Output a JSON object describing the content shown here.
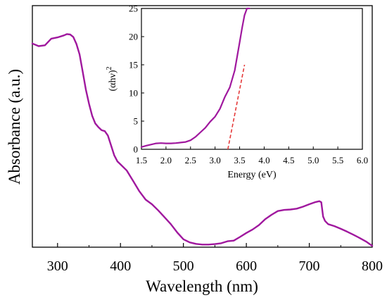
{
  "chart_data": [
    {
      "type": "line",
      "role": "main",
      "xlabel": "Wavelength (nm)",
      "ylabel": "Absorbance (a.u.)",
      "xlim": [
        260,
        800
      ],
      "x_ticks": [
        "300",
        "400",
        "500",
        "600",
        "700",
        "800"
      ],
      "y_ticks": [],
      "grid": false,
      "line_color": "#a0189e",
      "series": [
        {
          "x": [
            260,
            270,
            280,
            290,
            300,
            310,
            315,
            320,
            325,
            330,
            335,
            340,
            345,
            350,
            355,
            360,
            365,
            370,
            375,
            380,
            385,
            390,
            395,
            400,
            410,
            420,
            430,
            440,
            450,
            460,
            470,
            480,
            490,
            500,
            510,
            520,
            530,
            540,
            550,
            560,
            570,
            580,
            590,
            600,
            610,
            620,
            630,
            640,
            650,
            660,
            670,
            680,
            690,
            700,
            710,
            716,
            719,
            722,
            725,
            730,
            740,
            750,
            760,
            770,
            780,
            790,
            800
          ],
          "y": [
            0.93,
            0.918,
            0.922,
            0.952,
            0.958,
            0.967,
            0.973,
            0.971,
            0.96,
            0.928,
            0.88,
            0.8,
            0.72,
            0.655,
            0.6,
            0.565,
            0.548,
            0.534,
            0.53,
            0.51,
            0.465,
            0.42,
            0.392,
            0.378,
            0.35,
            0.303,
            0.255,
            0.217,
            0.196,
            0.168,
            0.137,
            0.105,
            0.068,
            0.036,
            0.022,
            0.015,
            0.012,
            0.012,
            0.014,
            0.018,
            0.027,
            0.03,
            0.047,
            0.065,
            0.081,
            0.101,
            0.128,
            0.148,
            0.165,
            0.17,
            0.172,
            0.176,
            0.185,
            0.196,
            0.206,
            0.21,
            0.205,
            0.14,
            0.12,
            0.105,
            0.096,
            0.084,
            0.071,
            0.057,
            0.042,
            0.026,
            0.006
          ]
        }
      ]
    },
    {
      "type": "line",
      "role": "inset",
      "xlabel": "Energy (eV)",
      "ylabel_base": "(αhν)",
      "ylabel_sup": "2",
      "xlim": [
        1.5,
        6.0
      ],
      "ylim": [
        0,
        25
      ],
      "x_ticks": [
        "1.5",
        "2.0",
        "2.5",
        "3.0",
        "3.5",
        "4.0",
        "4.5",
        "5.0",
        "5.5",
        "6.0"
      ],
      "y_ticks": [
        "0",
        "5",
        "10",
        "15",
        "20",
        "25"
      ],
      "grid": false,
      "line_color": "#a0189e",
      "fit_color": "#e53a3a",
      "series": [
        {
          "x": [
            1.5,
            1.6,
            1.7,
            1.8,
            1.9,
            2.0,
            2.1,
            2.2,
            2.3,
            2.4,
            2.5,
            2.6,
            2.7,
            2.8,
            2.9,
            3.0,
            3.1,
            3.2,
            3.3,
            3.4,
            3.45,
            3.5,
            3.55,
            3.6,
            3.65,
            3.7
          ],
          "y": [
            0.4,
            0.65,
            0.85,
            1.05,
            1.1,
            1.05,
            1.05,
            1.1,
            1.2,
            1.3,
            1.6,
            2.2,
            3.0,
            3.8,
            4.9,
            5.8,
            7.2,
            9.3,
            11.0,
            14.0,
            16.5,
            19.0,
            21.5,
            23.8,
            25.0,
            25.0
          ]
        }
      ],
      "tangent": {
        "x": [
          3.26,
          3.6
        ],
        "y": [
          0,
          15
        ]
      }
    }
  ]
}
